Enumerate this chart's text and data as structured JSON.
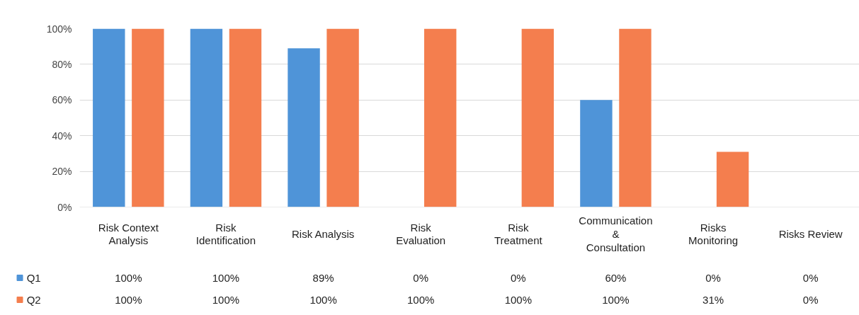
{
  "chart_data": {
    "type": "bar",
    "categories": [
      "Risk Context Analysis",
      "Risk Identification",
      "Risk Analysis",
      "Risk Evaluation",
      "Risk Treatment",
      "Communication & Consultation",
      "Risks Monitoring",
      "Risks Review"
    ],
    "series": [
      {
        "name": "Q1",
        "color": "#4f94d8",
        "values": [
          100,
          100,
          89,
          0,
          0,
          60,
          0,
          0
        ],
        "value_labels": [
          "100%",
          "100%",
          "89%",
          "0%",
          "0%",
          "60%",
          "0%",
          "0%"
        ]
      },
      {
        "name": "Q2",
        "color": "#f47e4e",
        "values": [
          100,
          100,
          100,
          100,
          100,
          100,
          31,
          0
        ],
        "value_labels": [
          "100%",
          "100%",
          "100%",
          "100%",
          "100%",
          "100%",
          "31%",
          "0%"
        ]
      }
    ],
    "ylim": [
      0,
      100
    ],
    "yticks": [
      {
        "value": 0,
        "label": "0%"
      },
      {
        "value": 20,
        "label": "20%"
      },
      {
        "value": 40,
        "label": "40%"
      },
      {
        "value": 60,
        "label": "60%"
      },
      {
        "value": 80,
        "label": "80%"
      },
      {
        "value": 100,
        "label": "100%"
      }
    ],
    "grid": "y",
    "legend": "bottom left"
  }
}
